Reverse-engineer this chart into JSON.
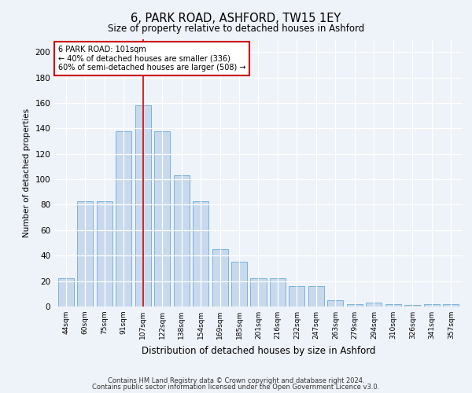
{
  "title1": "6, PARK ROAD, ASHFORD, TW15 1EY",
  "title2": "Size of property relative to detached houses in Ashford",
  "xlabel": "Distribution of detached houses by size in Ashford",
  "ylabel": "Number of detached properties",
  "categories": [
    "44sqm",
    "60sqm",
    "75sqm",
    "91sqm",
    "107sqm",
    "122sqm",
    "138sqm",
    "154sqm",
    "169sqm",
    "185sqm",
    "201sqm",
    "216sqm",
    "232sqm",
    "247sqm",
    "263sqm",
    "279sqm",
    "294sqm",
    "310sqm",
    "326sqm",
    "341sqm",
    "357sqm"
  ],
  "values": [
    22,
    83,
    83,
    138,
    158,
    138,
    103,
    83,
    45,
    35,
    22,
    22,
    16,
    16,
    5,
    2,
    3,
    2,
    1,
    2,
    2
  ],
  "bar_color": "#c8d9ee",
  "bar_edge_color": "#6aaad4",
  "highlight_index": 4,
  "highlight_line_color": "#cc0000",
  "annotation_text": "6 PARK ROAD: 101sqm\n← 40% of detached houses are smaller (336)\n60% of semi-detached houses are larger (508) →",
  "annotation_box_color": "#ffffff",
  "annotation_box_edge": "#cc0000",
  "ylim": [
    0,
    210
  ],
  "yticks": [
    0,
    20,
    40,
    60,
    80,
    100,
    120,
    140,
    160,
    180,
    200
  ],
  "background_color": "#eef2f9",
  "grid_color": "#ffffff",
  "footer1": "Contains HM Land Registry data © Crown copyright and database right 2024.",
  "footer2": "Contains public sector information licensed under the Open Government Licence v3.0."
}
